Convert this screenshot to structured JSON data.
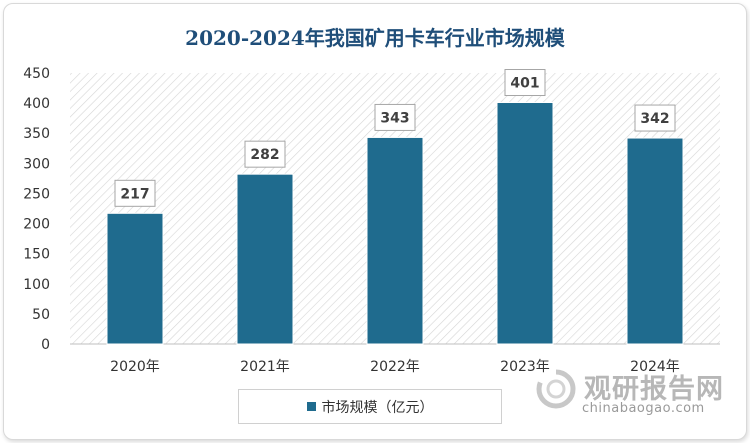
{
  "chart_data": {
    "type": "bar",
    "title": "2020-2024年我国矿用卡车行业市场规模",
    "categories": [
      "2020年",
      "2021年",
      "2022年",
      "2023年",
      "2024年"
    ],
    "series": [
      {
        "name": "市场规模（亿元）",
        "values": [
          217,
          282,
          343,
          401,
          342
        ]
      }
    ],
    "ylim": [
      0,
      450
    ],
    "yticks": [
      0,
      50,
      100,
      150,
      200,
      250,
      300,
      350,
      400,
      450
    ],
    "xlabel": "",
    "ylabel": "",
    "legend_position": "bottom",
    "colors": {
      "bar": "#1f6b8e",
      "title": "#1f4e79",
      "label_border": "#a6a6a6"
    }
  },
  "watermark": {
    "name": "观研报告网",
    "domain": "chinabaogao.com"
  }
}
